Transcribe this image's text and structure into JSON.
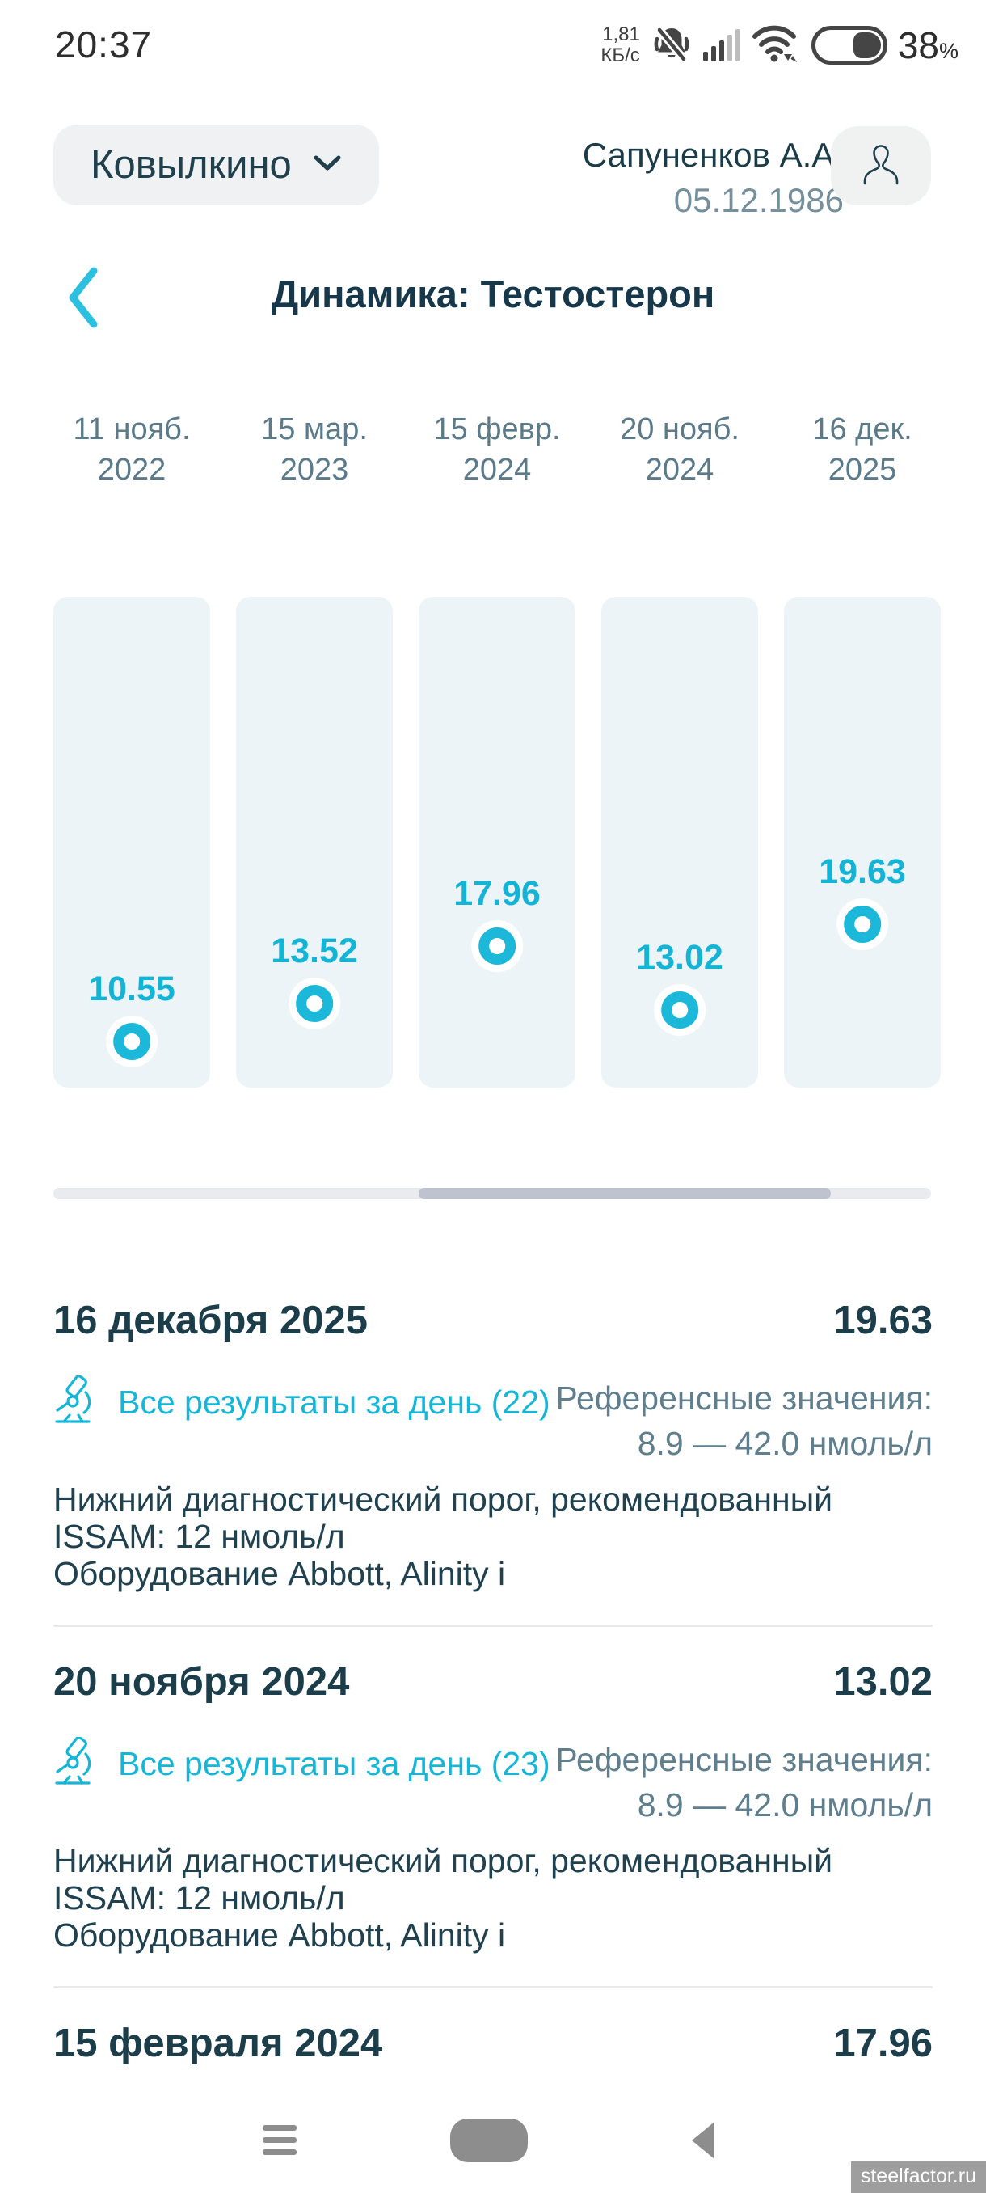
{
  "status_bar": {
    "time": "20:37",
    "net_speed_value": "1,81",
    "net_speed_unit": "КБ/с",
    "battery_percent": "38",
    "percent_sign": "%"
  },
  "header": {
    "location": "Ковылкино",
    "patient_name": "Сапуненков А.А.",
    "patient_dob": "05.12.1986"
  },
  "title_bar": {
    "title": "Динамика: Тестостерон"
  },
  "chart_data": {
    "type": "scatter",
    "title": "Динамика: Тестостерон",
    "unit": "нмоль/л",
    "x_labels": [
      [
        "11 нояб.",
        "2022"
      ],
      [
        "15 мар.",
        "2023"
      ],
      [
        "15 февр.",
        "2024"
      ],
      [
        "20 нояб.",
        "2024"
      ],
      [
        "16 дек.",
        "2025"
      ]
    ],
    "values": [
      10.55,
      13.52,
      17.96,
      13.02,
      19.63
    ],
    "reference_range": [
      8.9,
      42.0
    ],
    "layout": {
      "orientation": "horizontal-scroll",
      "columns_visible": 5,
      "point_style": "white halo with cyan ring",
      "value_labels_above_points": true
    }
  },
  "colors": {
    "accent_cyan": "#16b6d8",
    "dark_teal": "#1c3d4a",
    "muted_blue_gray": "#5f7e8e",
    "column_bg": "#ecf4f8",
    "scroll_thumb": "#bec3cf"
  },
  "entries": [
    {
      "date": "16 декабря 2025",
      "value": "19.63",
      "link_label": "Все результаты за день (22)",
      "ref_label": "Референсные значения:",
      "ref_range": "8.9 — 42.0 нмоль/л",
      "note1": "Нижний диагностический порог, рекомендованный ISSAM: 12 нмоль/л",
      "note2": "Оборудование Abbott, Alinity i"
    },
    {
      "date": "20 ноября 2024",
      "value": "13.02",
      "link_label": "Все результаты за день (23)",
      "ref_label": "Референсные значения:",
      "ref_range": "8.9 — 42.0 нмоль/л",
      "note1": "Нижний диагностический порог, рекомендованный ISSAM: 12 нмоль/л",
      "note2": "Оборудование Abbott, Alinity i"
    },
    {
      "date": "15 февраля 2024",
      "value": "17.96"
    }
  ],
  "watermark": "steelfactor.ru"
}
